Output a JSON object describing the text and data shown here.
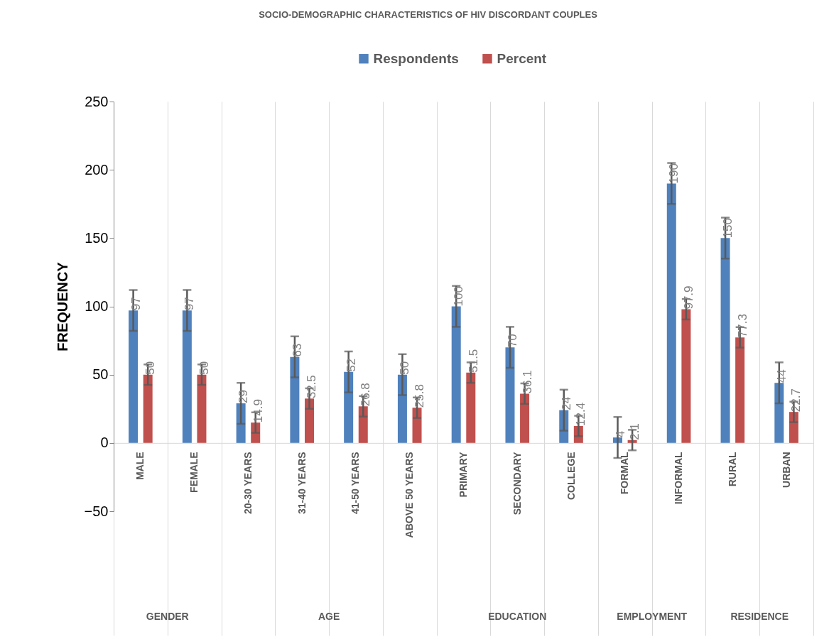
{
  "chart_data": {
    "type": "bar",
    "title": "SOCIO-DEMOGRAPHIC CHARACTERISTICS OF HIV DISCORDANT COUPLES",
    "ylabel": "FREQUENCY",
    "categories": [
      "MALE",
      "FEMALE",
      "20-30 YEARS",
      "31-40 YEARS",
      "41-50 YEARS",
      "ABOVE 50 YEARS",
      "PRIMARY",
      "SECONDARY",
      "COLLEGE",
      "FORMAL",
      "INFORMAL",
      "RURAL",
      "URBAN"
    ],
    "series": [
      {
        "name": "Respondents",
        "color": "#4f81bd",
        "values": [
          97,
          97,
          29,
          63,
          52,
          50,
          100,
          70,
          24,
          4,
          190,
          150,
          44
        ],
        "errors": [
          15,
          15,
          15,
          15,
          15,
          15,
          15,
          15,
          15,
          15,
          15,
          15,
          15
        ]
      },
      {
        "name": "Percent",
        "color": "#c0504d",
        "values": [
          50,
          50,
          14.9,
          32.5,
          26.8,
          25.8,
          51.5,
          36.1,
          12.4,
          2.1,
          97.9,
          77.3,
          22.7
        ],
        "errors": [
          7.5,
          7.5,
          7.5,
          7.5,
          7.5,
          7.5,
          7.5,
          7.5,
          7.5,
          7.5,
          7.5,
          7.5,
          7.5
        ]
      }
    ],
    "annotations": [
      "GENDER",
      "AGE",
      "EDUCATION",
      "EMPLOYMENT",
      "RESIDENCE"
    ],
    "ylim": [
      -50,
      250
    ],
    "yticks": [
      -50,
      0,
      50,
      100,
      150,
      200,
      250
    ],
    "data_labels": true,
    "grid": "x",
    "legend": "top"
  }
}
